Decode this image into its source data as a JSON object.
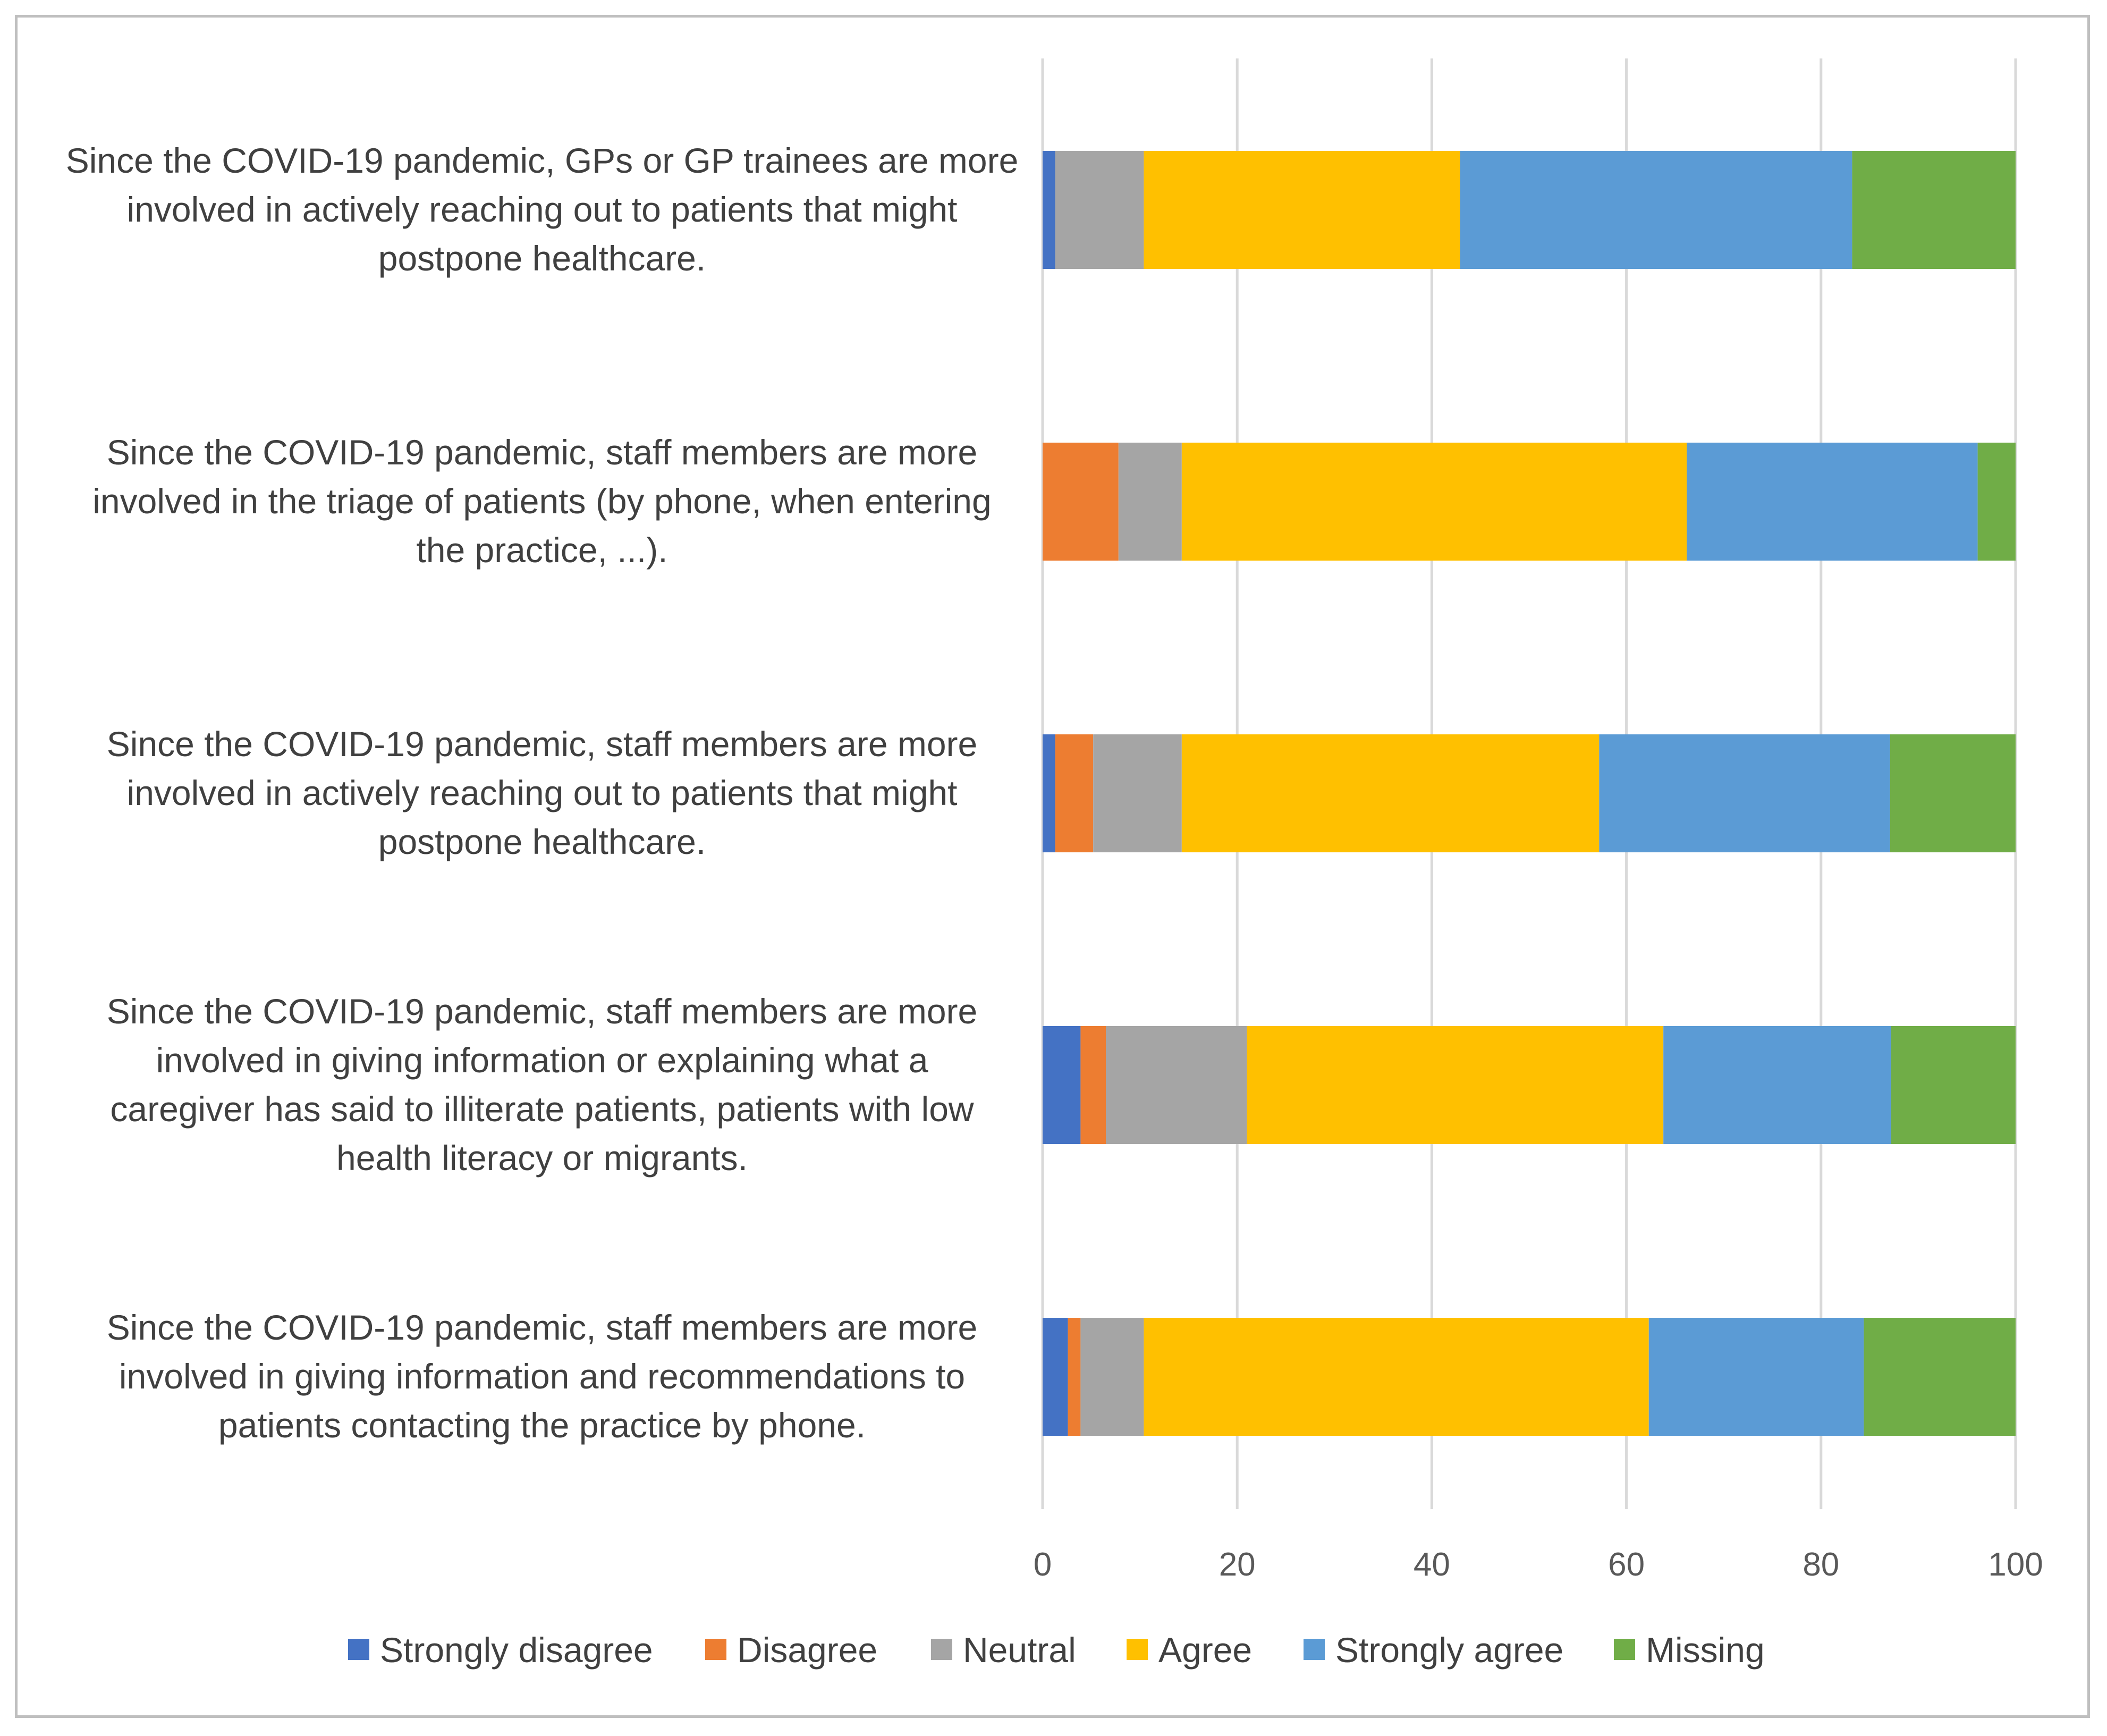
{
  "chart_data": {
    "type": "bar",
    "orientation": "horizontal",
    "stacked": true,
    "title": "",
    "xlabel": "",
    "ylabel": "",
    "xlim": [
      0,
      100
    ],
    "xticks": [
      0,
      20,
      40,
      60,
      80,
      100
    ],
    "grid": true,
    "legend_position": "bottom",
    "categories": [
      [
        "Since the COVID-19 pandemic, GPs or GP trainees are more",
        "involved in actively reaching out to patients that might",
        "postpone healthcare."
      ],
      [
        "Since the COVID-19 pandemic, staff members are more",
        "involved in the triage of patients (by phone, when entering",
        "the practice, ...)."
      ],
      [
        "Since the COVID-19 pandemic, staff members are more",
        "involved in actively reaching out to patients that might",
        "postpone healthcare."
      ],
      [
        "Since the COVID-19 pandemic, staff members are more",
        "involved in giving information or explaining what a",
        "caregiver has said to illiterate patients, patients with low",
        "health literacy or migrants."
      ],
      [
        "Since the COVID-19 pandemic, staff members are more",
        "involved in giving information and recommendations to",
        "patients contacting the practice by phone."
      ]
    ],
    "series": [
      {
        "name": "Strongly disagree",
        "color": "#4472c4",
        "values": [
          1.3,
          0,
          1.3,
          3.9,
          2.6
        ]
      },
      {
        "name": "Disagree",
        "color": "#ed7d31",
        "values": [
          0,
          7.8,
          3.9,
          2.6,
          1.3
        ]
      },
      {
        "name": "Neutral",
        "color": "#a5a5a5",
        "values": [
          9.1,
          6.5,
          9.1,
          14.5,
          6.5
        ]
      },
      {
        "name": "Agree",
        "color": "#ffc000",
        "values": [
          32.5,
          51.9,
          42.9,
          42.8,
          51.9
        ]
      },
      {
        "name": "Strongly agree",
        "color": "#5b9bd5",
        "values": [
          40.3,
          29.9,
          29.9,
          23.4,
          22.1
        ]
      },
      {
        "name": "Missing",
        "color": "#70ad47",
        "values": [
          16.8,
          3.9,
          12.9,
          12.8,
          15.6
        ]
      }
    ]
  }
}
